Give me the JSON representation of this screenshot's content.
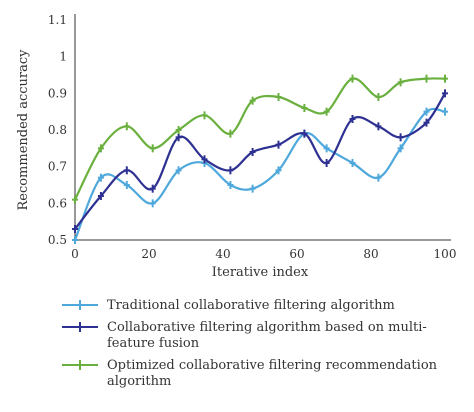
{
  "chart_data": {
    "type": "line",
    "title": "",
    "xlabel": "Iterative index",
    "ylabel": "Recommended accuracy",
    "xlim": [
      0,
      100
    ],
    "ylim": [
      0.5,
      1.1
    ],
    "xticks": [
      "0",
      "20",
      "40",
      "60",
      "80",
      "100"
    ],
    "yticks": [
      "0.5",
      "0.6",
      "0.7",
      "0.8",
      "0.9",
      "1",
      "1.1"
    ],
    "grid": false,
    "legend_position": "bottom",
    "x": [
      0,
      7,
      14,
      21,
      28,
      35,
      42,
      48,
      55,
      62,
      68,
      75,
      82,
      88,
      95,
      100
    ],
    "series": [
      {
        "name": "Traditional collaborative filtering algorithm",
        "color": "#4fa8dc",
        "values": [
          0.5,
          0.67,
          0.65,
          0.6,
          0.69,
          0.71,
          0.65,
          0.64,
          0.69,
          0.79,
          0.75,
          0.71,
          0.67,
          0.75,
          0.85,
          0.85
        ]
      },
      {
        "name": "Collaborative filtering algorithm based on multi-feature fusion",
        "color": "#2e3192",
        "values": [
          0.53,
          0.62,
          0.69,
          0.64,
          0.78,
          0.72,
          0.69,
          0.74,
          0.76,
          0.79,
          0.71,
          0.83,
          0.81,
          0.78,
          0.82,
          0.9
        ]
      },
      {
        "name": "Optimized collaborative filtering recommendation algorithm",
        "color": "#6ab03e",
        "values": [
          0.61,
          0.75,
          0.81,
          0.75,
          0.8,
          0.84,
          0.79,
          0.88,
          0.89,
          0.86,
          0.85,
          0.94,
          0.89,
          0.93,
          0.94,
          0.94
        ]
      }
    ]
  },
  "legend": {
    "items": [
      {
        "text": "Traditional collaborative filtering algorithm"
      },
      {
        "text": "Collaborative filtering algorithm based on multi-feature fusion"
      },
      {
        "text": "Optimized collaborative filtering recommendation algorithm"
      }
    ]
  }
}
